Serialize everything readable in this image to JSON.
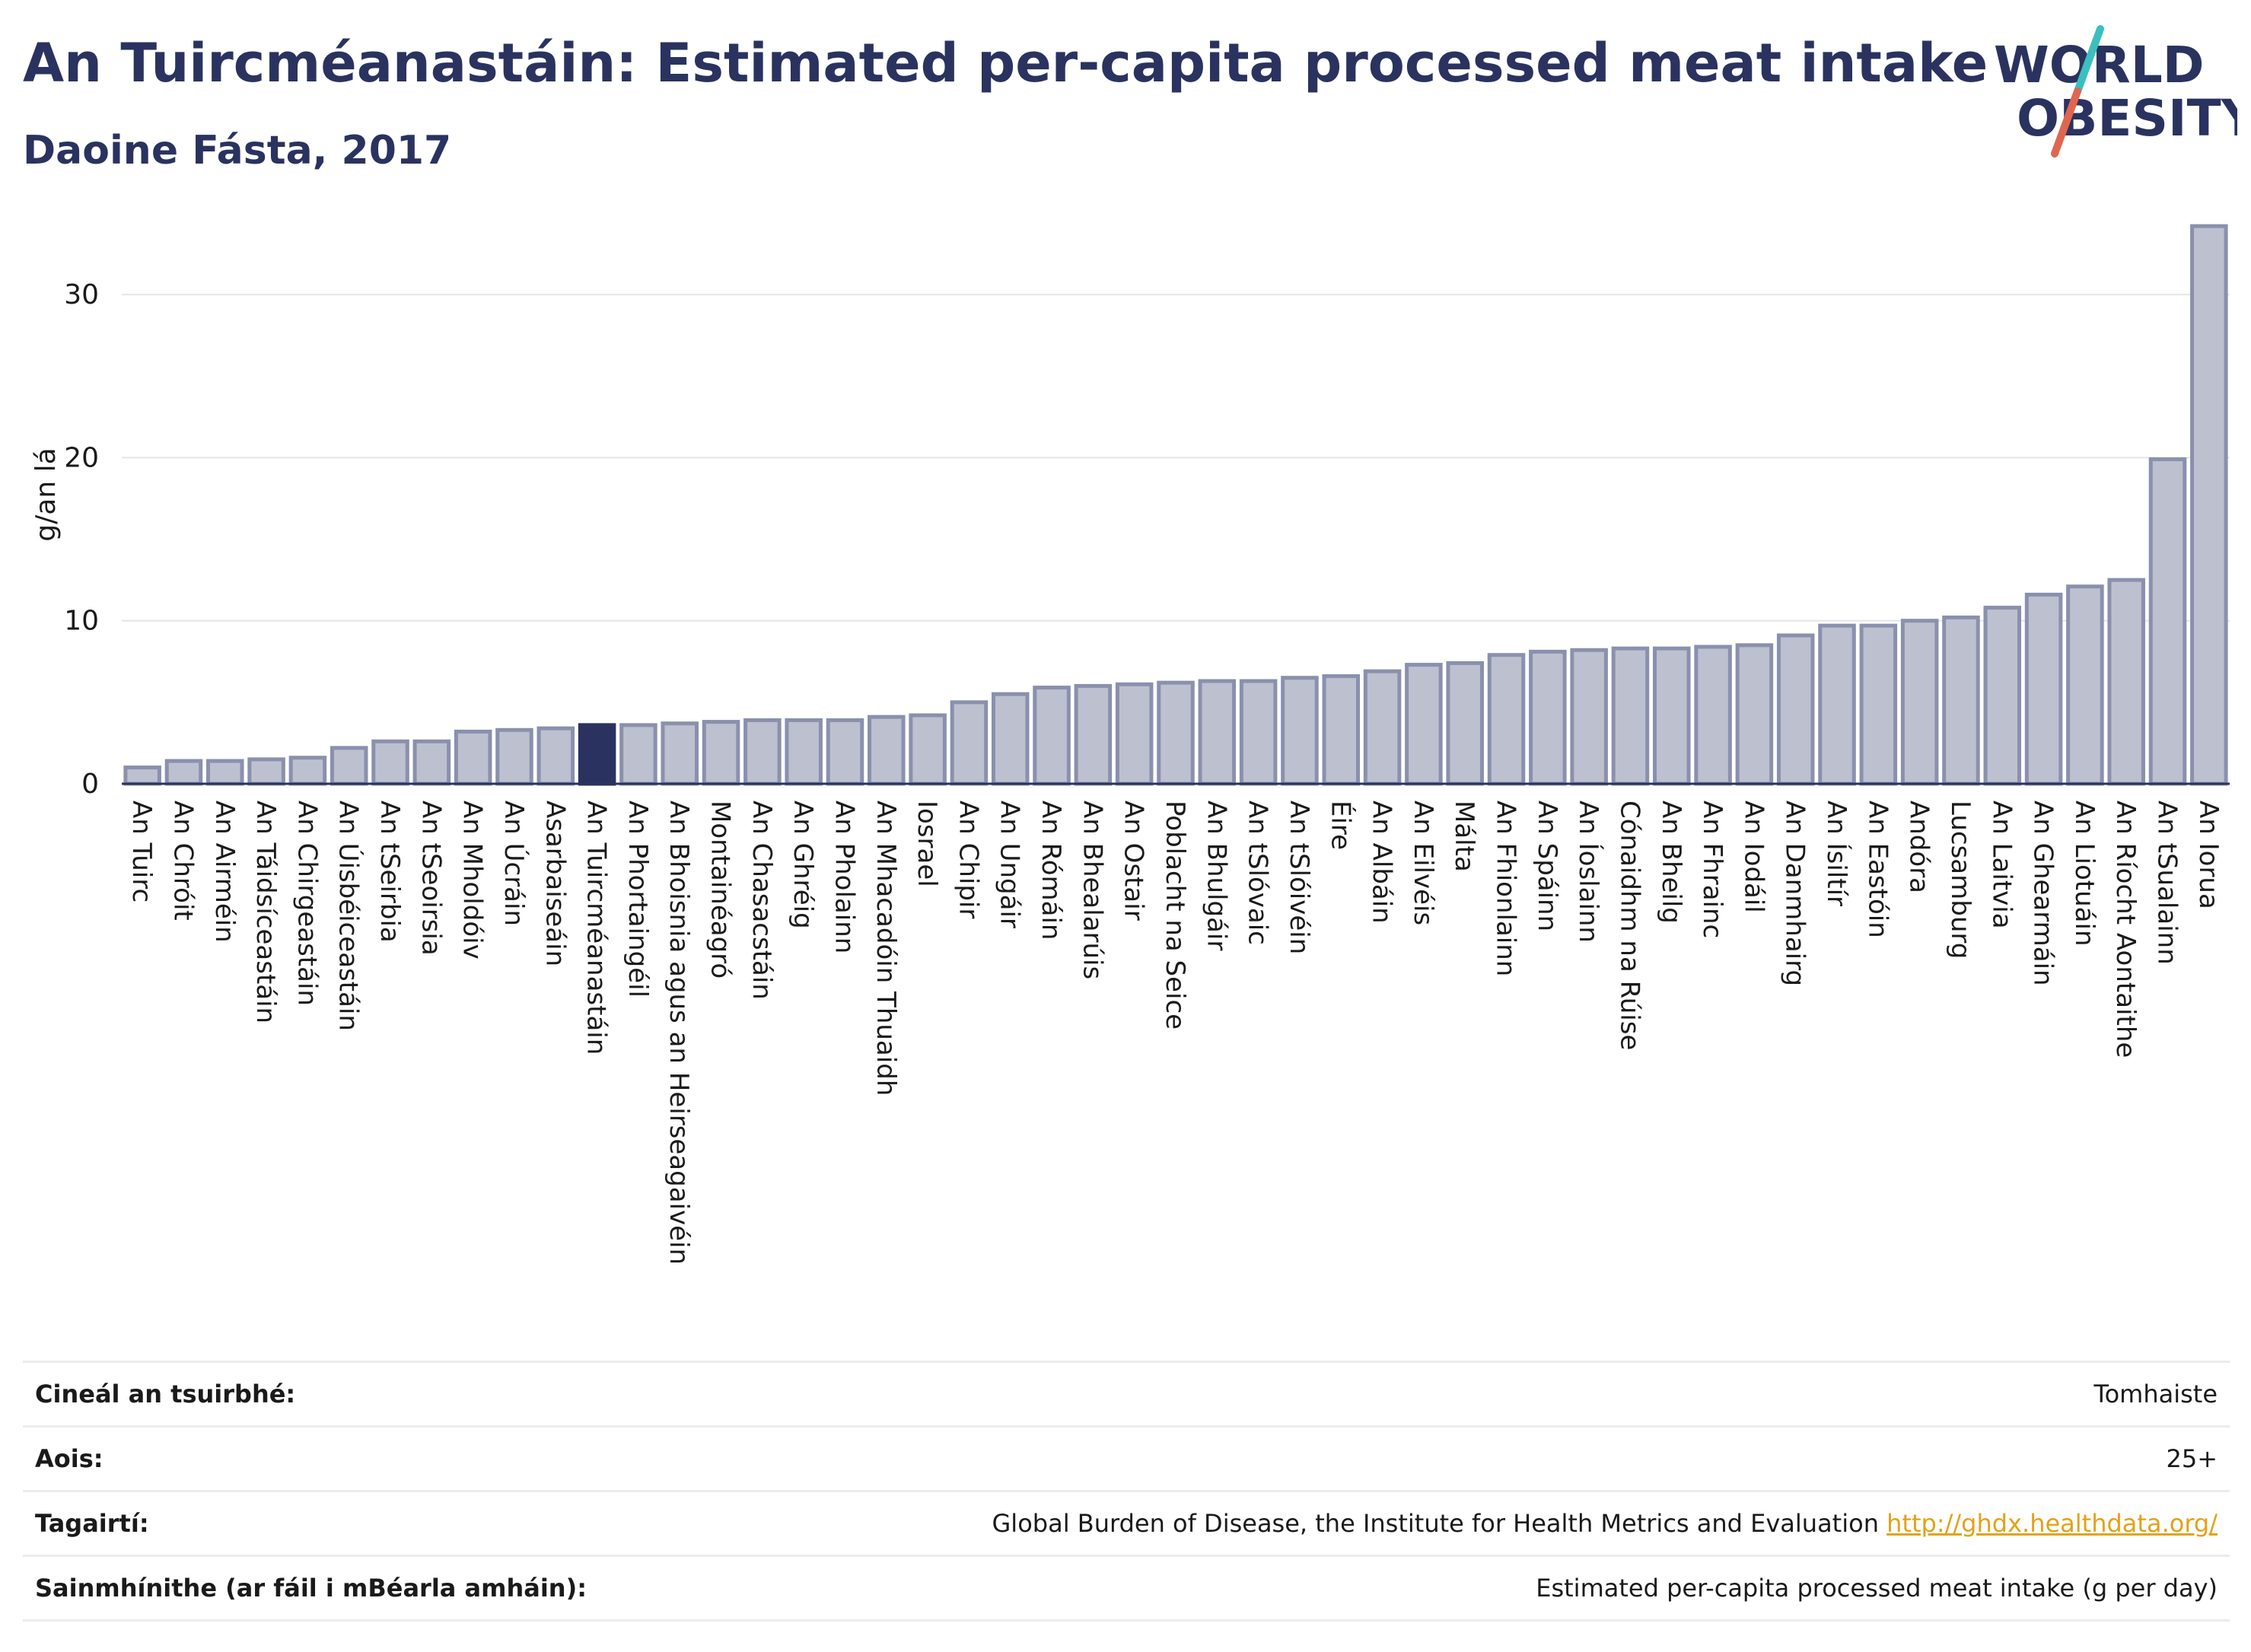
{
  "header": {
    "title": "An Tuircméanastáin: Estimated per-capita processed meat intake",
    "subtitle": "Daoine Fásta, 2017"
  },
  "logo": {
    "line1": "WORLD",
    "line2": "OBESITY",
    "icon": "world-obesity-logo"
  },
  "colors": {
    "highlight": "#2a335f",
    "bar_fill": "#bdc0cf",
    "bar_stroke": "#8a90ad",
    "grid": "#e6e6e6",
    "logo_teal": "#3bbfbf",
    "logo_red": "#e0664f"
  },
  "chart_data": {
    "type": "bar",
    "title": "An Tuircméanastáin: Estimated per-capita processed meat intake",
    "subtitle": "Daoine Fásta, 2017",
    "ylabel": "g/an lá",
    "ylim": [
      0,
      35
    ],
    "yticks": [
      0,
      10,
      20,
      30
    ],
    "grid": true,
    "highlight": "An Tuircméanastáin",
    "categories": [
      "An Tuirc",
      "An Chróit",
      "An Airméin",
      "An Táidsíceastáin",
      "An Chirgeastáin",
      "An Úisbéiceastáin",
      "An tSeirbia",
      "An tSeoirsia",
      "An Mholdóiv",
      "An Úcráin",
      "Asarbaiseáin",
      "An Tuircméanastáin",
      "An Phortaingéil",
      "An Bhoisnia agus an Heirseagaivéin",
      "Montainéagró",
      "An Chasacstáin",
      "An Ghréig",
      "An Pholainn",
      "An Mhacadóin Thuaidh",
      "Iosrael",
      "An Chipir",
      "An Ungáir",
      "An Rómáin",
      "An Bhealarúis",
      "An Ostair",
      "Poblacht na Seice",
      "An Bhulgáir",
      "An tSlóvaic",
      "An tSlóivéin",
      "Éire",
      "An Albáin",
      "An Eilvéis",
      "Málta",
      "An Fhionlainn",
      "An Spáinn",
      "An Íoslainn",
      "Cónaidhm na Rúise",
      "An Bheilg",
      "An Fhrainc",
      "An Iodáil",
      "An Danmhairg",
      "An Ísiltír",
      "An Eastóin",
      "Andóra",
      "Lucsamburg",
      "An Laitvia",
      "An Ghearmáin",
      "An Liotuáin",
      "An Ríocht Aontaithe",
      "An tSualainn",
      "An Iorua"
    ],
    "values": [
      1.0,
      1.4,
      1.4,
      1.5,
      1.6,
      2.2,
      2.6,
      2.6,
      3.2,
      3.3,
      3.4,
      3.6,
      3.6,
      3.7,
      3.8,
      3.9,
      3.9,
      3.9,
      4.1,
      4.2,
      5.0,
      5.5,
      5.9,
      6.0,
      6.1,
      6.2,
      6.3,
      6.3,
      6.5,
      6.6,
      6.9,
      7.3,
      7.4,
      7.9,
      8.1,
      8.2,
      8.3,
      8.3,
      8.4,
      8.5,
      9.1,
      9.7,
      9.7,
      10.0,
      10.2,
      10.8,
      11.6,
      12.1,
      12.5,
      19.9,
      34.2
    ]
  },
  "info": {
    "survey_type": {
      "label": "Cineál an tsuirbhé:",
      "value": "Tomhaiste"
    },
    "age": {
      "label": "Aois:",
      "value": "25+"
    },
    "references": {
      "label": "Tagairtí:",
      "value": "Global Burden of Disease, the Institute for Health Metrics and Evaluation",
      "link": "http://ghdx.healthdata.org/"
    },
    "definitions": {
      "label": "Sainmhínithe (ar fáil i mBéarla amháin):",
      "value": "Estimated per-capita processed meat intake (g per day)"
    }
  }
}
